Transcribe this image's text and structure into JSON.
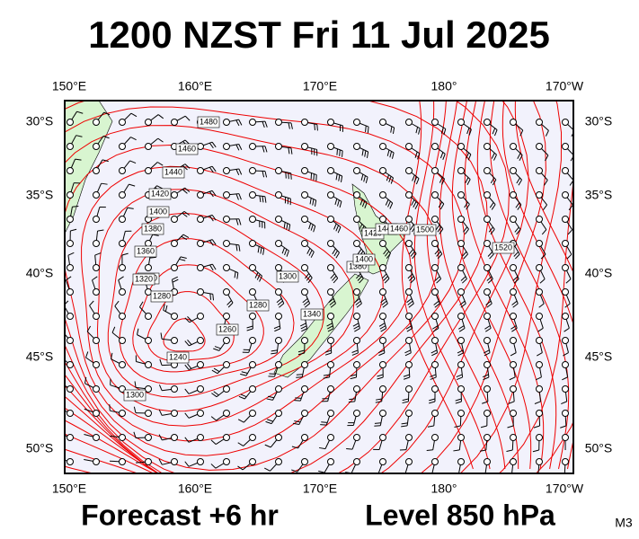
{
  "title": "1200 NZST Fri 11 Jul 2025",
  "map": {
    "top_axis": [
      "150°E",
      "160°E",
      "170°E",
      "180°",
      "170°W"
    ],
    "bottom_axis": [
      "150°E",
      "160°E",
      "170°E",
      "180°",
      "170°W"
    ],
    "left_axis": [
      "30°S",
      "35°S",
      "40°S",
      "45°S",
      "50°S"
    ],
    "right_axis": [
      "30°S",
      "35°S",
      "40°S",
      "45°S",
      "50°S"
    ],
    "contour_labels": [
      "1480",
      "1460",
      "1440",
      "1420",
      "1400",
      "1380",
      "1360",
      "1340",
      "1320",
      "1300",
      "1280",
      "1260",
      "1240",
      "1380",
      "1400",
      "1420",
      "1440",
      "1460",
      "1500",
      "1520",
      "1280",
      "1300",
      "1340"
    ]
  },
  "footer": {
    "forecast": "Forecast +6 hr",
    "level": "Level 850 hPa",
    "code": "M3"
  }
}
